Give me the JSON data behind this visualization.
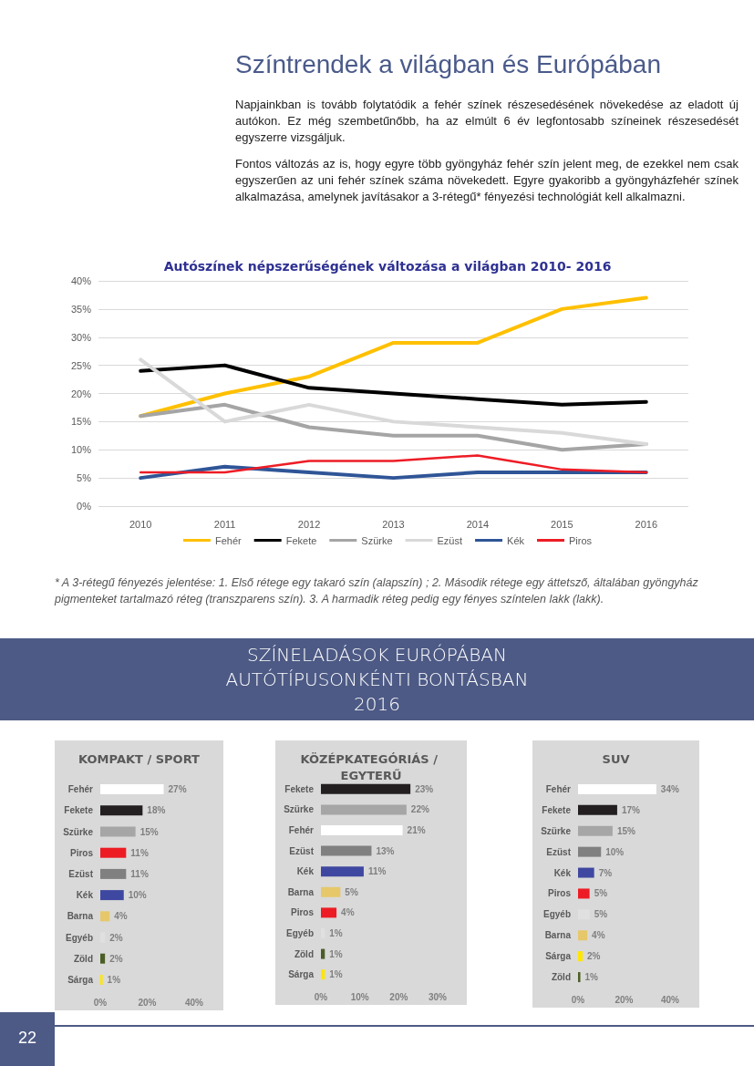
{
  "chart_data": [
    {
      "type": "line",
      "title": "Autószínek népszerűségének változása a világban 2010- 2016",
      "annotations": [
        "Színtrendek a világban és Európában",
        "Napjainkban is tovább folytatódik a fehér színek részesedésének növekedése az eladott új autókon. Ez még szembetűnőbb, ha az elmúlt 6 év legfontosabb színeinek részesedését egyszerre vizsgáljuk.",
        "Fontos változás az is, hogy egyre több gyöngyház fehér szín jelent meg, de ezekkel nem csak egyszerűen az uni fehér színek száma növekedett. Egyre gyakoribb a gyöngyházfehér színek alkalmazása, amelynek javításakor a 3-rétegű* fényezési technológiát kell alkalmazni.",
        "* A 3-rétegű fényezés jelentése: 1. Első rétege egy takaró szín (alapszín) ; 2. Második rétege egy áttetsző, általában gyöngyház pigmenteket tartalmazó réteg (transzparens szín). 3. A harmadik réteg pedig egy fényes színtelen lakk (lakk)."
      ],
      "categories": [
        "2010",
        "2011",
        "2012",
        "2013",
        "2014",
        "2015",
        "2016"
      ],
      "series": [
        {
          "name": "Fehér",
          "color": "#ffc000",
          "values": [
            16,
            20,
            23,
            29,
            29,
            35,
            37
          ]
        },
        {
          "name": "Fekete",
          "color": "#000000",
          "values": [
            24,
            25,
            21,
            20,
            19,
            18,
            18.5
          ]
        },
        {
          "name": "Szürke",
          "color": "#a5a5a5",
          "values": [
            16,
            18,
            14,
            12.5,
            12.5,
            10,
            11
          ]
        },
        {
          "name": "Ezüst",
          "color": "#d9d9d9",
          "values": [
            26,
            15,
            18,
            15,
            14,
            13,
            11
          ]
        },
        {
          "name": "Kék",
          "color": "#2f5597",
          "values": [
            5,
            7,
            6,
            5,
            6,
            6,
            6
          ]
        },
        {
          "name": "Piros",
          "color": "#ee1c25",
          "values": [
            6,
            6,
            8,
            8,
            9,
            6.5,
            6
          ]
        }
      ],
      "ylim": [
        0,
        40
      ],
      "yticks": [
        {
          "value": 0,
          "label": "0%"
        },
        {
          "value": 5,
          "label": "5%"
        },
        {
          "value": 10,
          "label": "10%"
        },
        {
          "value": 15,
          "label": "15%"
        },
        {
          "value": 20,
          "label": "20%"
        },
        {
          "value": 25,
          "label": "25%"
        },
        {
          "value": 30,
          "label": "30%"
        },
        {
          "value": 35,
          "label": "35%"
        },
        {
          "value": 40,
          "label": "40%"
        }
      ],
      "grid": "y",
      "legend": "bottom",
      "marker": "none",
      "line_style": "solid"
    },
    {
      "type": "bar",
      "orientation": "horizontal",
      "title": "KOMPAKT / SPORT",
      "annotations": [
        "SZÍNELADÁSOK EURÓPÁBAN\nAUTÓTÍPUSONKÉNTI BONTÁSBAN\n2016"
      ],
      "categories": [
        "Fehér",
        "Fekete",
        "Szürke",
        "Piros",
        "Ezüst",
        "Kék",
        "Barna",
        "Egyéb",
        "Zöld",
        "Sárga"
      ],
      "values": [
        27,
        18,
        15,
        11,
        11,
        10,
        4,
        2,
        2,
        1
      ],
      "value_labels": [
        "27%",
        "18%",
        "15%",
        "11%",
        "11%",
        "10%",
        "4%",
        "2%",
        "2%",
        "1%"
      ],
      "colors": [
        "#ffffff",
        "#231f20",
        "#a6a6a6",
        "#ed1c24",
        "#808080",
        "#3f48a0",
        "#e6c86a",
        "#e0e0e0",
        "#4b5e26",
        "#ffe600"
      ],
      "xlim": [
        0,
        40
      ],
      "xticks": [
        {
          "value": 0,
          "label": "0%"
        },
        {
          "value": 20,
          "label": "20%"
        },
        {
          "value": 40,
          "label": "40%"
        }
      ]
    },
    {
      "type": "bar",
      "orientation": "horizontal",
      "title": "KÖZÉPKATEGÓRIÁS / EGYTERŰ",
      "categories": [
        "Fekete",
        "Szürke",
        "Fehér",
        "Ezüst",
        "Kék",
        "Barna",
        "Piros",
        "Egyéb",
        "Zöld",
        "Sárga"
      ],
      "values": [
        23,
        22,
        21,
        13,
        11,
        5,
        4,
        1,
        1,
        1
      ],
      "value_labels": [
        "23%",
        "22%",
        "21%",
        "13%",
        "11%",
        "5%",
        "4%",
        "1%",
        "1%",
        "1%"
      ],
      "colors": [
        "#231f20",
        "#a6a6a6",
        "#ffffff",
        "#808080",
        "#3f48a0",
        "#e6c86a",
        "#ed1c24",
        "#e0e0e0",
        "#4b5e26",
        "#ffe600"
      ],
      "xlim": [
        0,
        30
      ],
      "xticks": [
        {
          "value": 0,
          "label": "0%"
        },
        {
          "value": 10,
          "label": "10%"
        },
        {
          "value": 20,
          "label": "20%"
        },
        {
          "value": 30,
          "label": "30%"
        }
      ]
    },
    {
      "type": "bar",
      "orientation": "horizontal",
      "title": "SUV",
      "annotations": [
        "22"
      ],
      "categories": [
        "Fehér",
        "Fekete",
        "Szürke",
        "Ezüst",
        "Kék",
        "Piros",
        "Egyéb",
        "Barna",
        "Sárga",
        "Zöld"
      ],
      "values": [
        34,
        17,
        15,
        10,
        7,
        5,
        5,
        4,
        2,
        1
      ],
      "value_labels": [
        "34%",
        "17%",
        "15%",
        "10%",
        "7%",
        "5%",
        "5%",
        "4%",
        "2%",
        "1%"
      ],
      "colors": [
        "#ffffff",
        "#231f20",
        "#a6a6a6",
        "#808080",
        "#3f48a0",
        "#ed1c24",
        "#e0e0e0",
        "#e6c86a",
        "#ffe600",
        "#4b5e26"
      ],
      "xlim": [
        0,
        40
      ],
      "xticks": [
        {
          "value": 0,
          "label": "0%"
        },
        {
          "value": 20,
          "label": "20%"
        },
        {
          "value": 40,
          "label": "40%"
        }
      ]
    }
  ]
}
